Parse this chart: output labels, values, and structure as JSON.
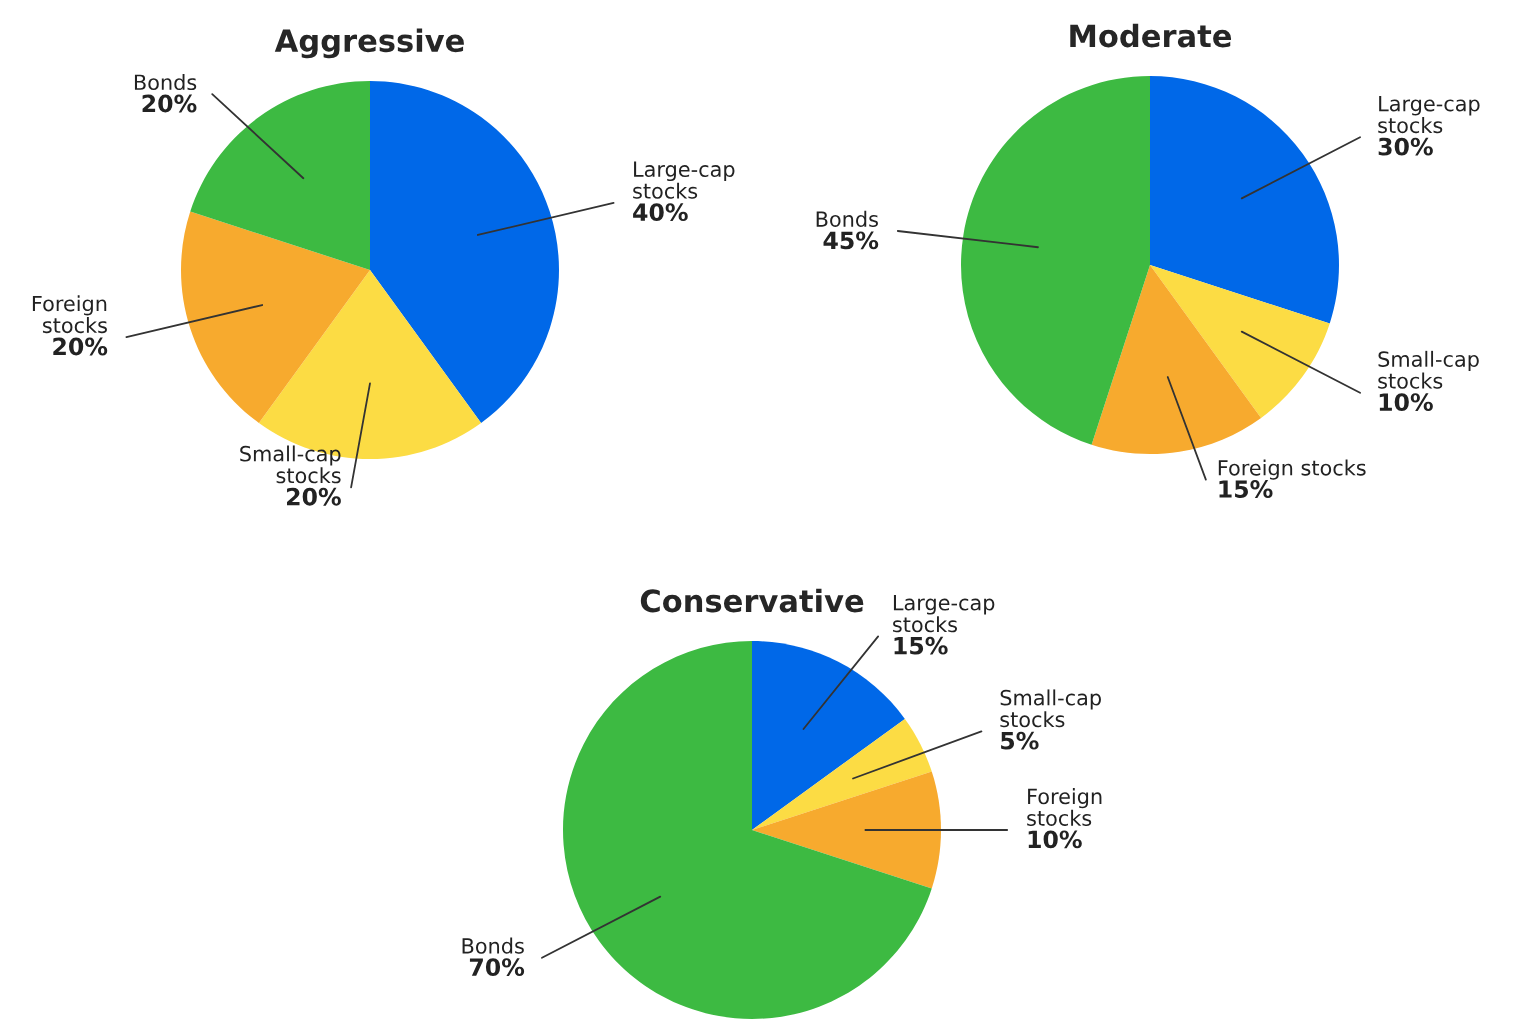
{
  "chart_data": [
    {
      "type": "pie",
      "title": "Aggressive",
      "categories": [
        "Large-cap\nstocks",
        "Small-cap\nstocks",
        "Foreign\nstocks",
        "Bonds"
      ],
      "values": [
        40,
        20,
        20,
        20
      ],
      "value_labels": [
        "40%",
        "20%",
        "20%",
        "20%"
      ],
      "colors": [
        "#0068e8",
        "#fcdc44",
        "#f7aa2e",
        "#3dba42"
      ]
    },
    {
      "type": "pie",
      "title": "Moderate",
      "categories": [
        "Large-cap\nstocks",
        "Small-cap\nstocks",
        "Foreign stocks",
        "Bonds"
      ],
      "values": [
        30,
        10,
        15,
        45
      ],
      "value_labels": [
        "30%",
        "10%",
        "15%",
        "45%"
      ],
      "colors": [
        "#0068e8",
        "#fcdc44",
        "#f7aa2e",
        "#3dba42"
      ]
    },
    {
      "type": "pie",
      "title": "Conservative",
      "categories": [
        "Large-cap\nstocks",
        "Small-cap\nstocks",
        "Foreign\nstocks",
        "Bonds"
      ],
      "values": [
        15,
        5,
        10,
        70
      ],
      "value_labels": [
        "15%",
        "5%",
        "10%",
        "70%"
      ],
      "colors": [
        "#0068e8",
        "#fcdc44",
        "#f7aa2e",
        "#3dba42"
      ]
    }
  ]
}
